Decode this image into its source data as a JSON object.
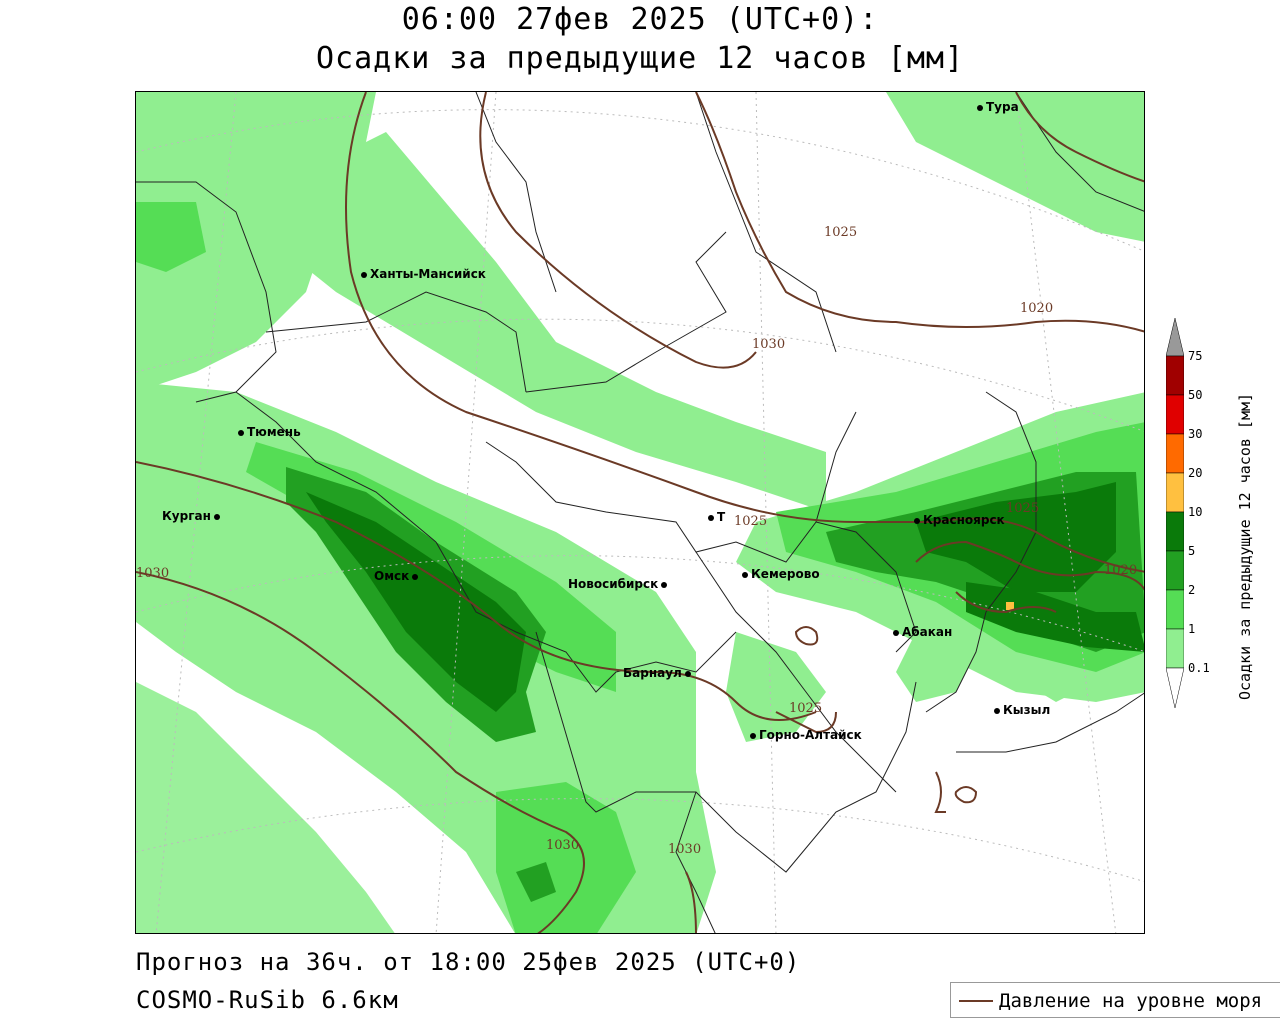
{
  "title": {
    "line1": "06:00 27фев 2025 (UTC+0):",
    "line2": "Осадки за предыдущие 12 часов [мм]"
  },
  "footer": {
    "forecast": "Прогноз на 36ч. от 18:00 25фев 2025 (UTC+0)",
    "model": "COSMO-RuSib 6.6км"
  },
  "legend": {
    "pressure_label": "Давление на уровне моря"
  },
  "colorbar": {
    "title": "Осадки за предыдущие 12 часов [мм]",
    "ticks": [
      "75",
      "50",
      "30",
      "20",
      "10",
      "5",
      "2",
      "1",
      "0.1"
    ],
    "colors": [
      "#999999",
      "#a00000",
      "#e00000",
      "#ff6a00",
      "#ffc040",
      "#0a7a0a",
      "#22a022",
      "#55dd55",
      "#90ee90",
      "#ffffff"
    ]
  },
  "cities": {
    "tura": "Тура",
    "khanty": "Ханты-Мансийск",
    "tyumen": "Тюмень",
    "kurgan": "Курган",
    "omsk": "Омск",
    "novosibirsk": "Новосибирск",
    "tomsk": "Т",
    "kemerovo": "Кемерово",
    "krasnoyarsk": "Красноярск",
    "abakan": "Абакан",
    "barnaul": "Барнаул",
    "gorno": "Горно-Алтайск",
    "kyzyl": "Кызыл"
  },
  "isobars": {
    "l1025a": "1025",
    "l1020a": "1020",
    "l1030a": "1030",
    "l1025b": "1025",
    "l1025c": "1025",
    "l1020b": "1020",
    "l1030b": "1030",
    "l1025d": "1025",
    "l1030c": "1030",
    "l1030d": "1030"
  }
}
